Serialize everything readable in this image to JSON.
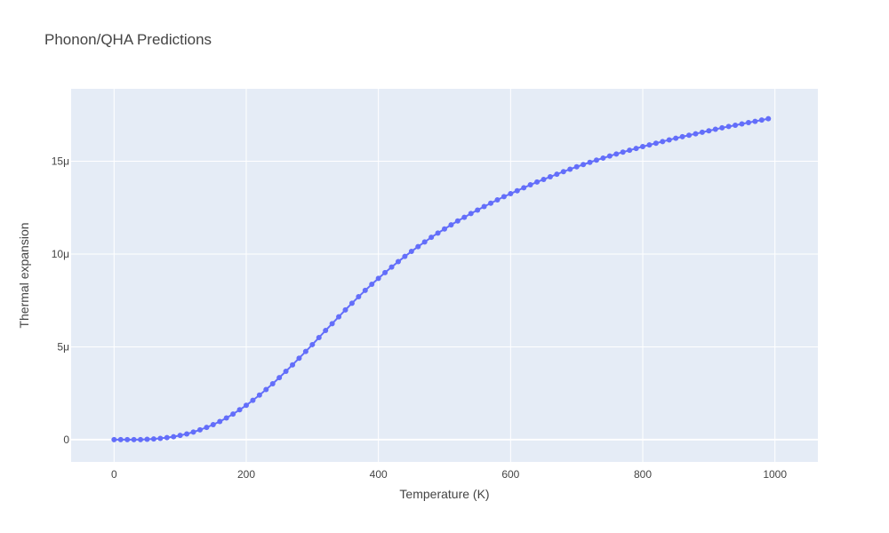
{
  "chart_data": {
    "type": "line",
    "mode": "lines+markers",
    "title": "Phonon/QHA Predictions",
    "xlabel": "Temperature (K)",
    "ylabel": "Thermal expansion",
    "xlim": [
      -65,
      1065
    ],
    "ylim": [
      -1.2e-06,
      1.89e-05
    ],
    "x_ticks": [
      0,
      200,
      400,
      600,
      800,
      1000
    ],
    "x_tick_labels": [
      "0",
      "200",
      "400",
      "600",
      "800",
      "1000"
    ],
    "y_ticks": [
      0,
      5e-06,
      1e-05,
      1.5e-05
    ],
    "y_tick_labels": [
      "0",
      "5μ",
      "10μ",
      "15μ"
    ],
    "grid": true,
    "colors": {
      "plot_bg": "#e5ecf6",
      "grid": "#ffffff",
      "series": "#636efa",
      "text": "#444444"
    },
    "series": [
      {
        "x": [
          0,
          10,
          20,
          30,
          40,
          50,
          60,
          70,
          80,
          90,
          100,
          110,
          120,
          130,
          140,
          150,
          160,
          170,
          180,
          190,
          200,
          210,
          220,
          230,
          240,
          250,
          260,
          270,
          280,
          290,
          300,
          310,
          320,
          330,
          340,
          350,
          360,
          370,
          380,
          390,
          400,
          410,
          420,
          430,
          440,
          450,
          460,
          470,
          480,
          490,
          500,
          510,
          520,
          530,
          540,
          550,
          560,
          570,
          580,
          590,
          600,
          610,
          620,
          630,
          640,
          650,
          660,
          670,
          680,
          690,
          700,
          710,
          720,
          730,
          740,
          750,
          760,
          770,
          780,
          790,
          800,
          810,
          820,
          830,
          840,
          850,
          860,
          870,
          880,
          890,
          900,
          910,
          920,
          930,
          940,
          950,
          960,
          970,
          980,
          990
        ],
        "y": [
          0,
          0,
          0,
          0,
          0,
          2e-08,
          4e-08,
          7e-08,
          1.1e-07,
          1.6e-07,
          2.3e-07,
          3.1e-07,
          4.1e-07,
          5.3e-07,
          6.6e-07,
          8.1e-07,
          9.8e-07,
          1.17e-06,
          1.38e-06,
          1.61e-06,
          1.85e-06,
          2.12e-06,
          2.4e-06,
          2.7e-06,
          3.01e-06,
          3.34e-06,
          3.68e-06,
          4.03e-06,
          4.39e-06,
          4.75e-06,
          5.12e-06,
          5.5e-06,
          5.88e-06,
          6.25e-06,
          6.62e-06,
          6.99e-06,
          7.35e-06,
          7.7e-06,
          8.04e-06,
          8.37e-06,
          8.69e-06,
          9e-06,
          9.3e-06,
          9.59e-06,
          9.87e-06,
          1.014e-05,
          1.04e-05,
          1.065e-05,
          1.09e-05,
          1.113e-05,
          1.135e-05,
          1.157e-05,
          1.178e-05,
          1.198e-05,
          1.218e-05,
          1.237e-05,
          1.256e-05,
          1.274e-05,
          1.292e-05,
          1.309e-05,
          1.325e-05,
          1.341e-05,
          1.357e-05,
          1.373e-05,
          1.388e-05,
          1.402e-05,
          1.416e-05,
          1.43e-05,
          1.444e-05,
          1.457e-05,
          1.47e-05,
          1.482e-05,
          1.494e-05,
          1.506e-05,
          1.517e-05,
          1.528e-05,
          1.539e-05,
          1.549e-05,
          1.559e-05,
          1.569e-05,
          1.579e-05,
          1.588e-05,
          1.597e-05,
          1.606e-05,
          1.615e-05,
          1.624e-05,
          1.632e-05,
          1.64e-05,
          1.648e-05,
          1.656e-05,
          1.664e-05,
          1.672e-05,
          1.68e-05,
          1.687e-05,
          1.694e-05,
          1.701e-05,
          1.708e-05,
          1.715e-05,
          1.722e-05,
          1.729e-05
        ]
      }
    ]
  }
}
